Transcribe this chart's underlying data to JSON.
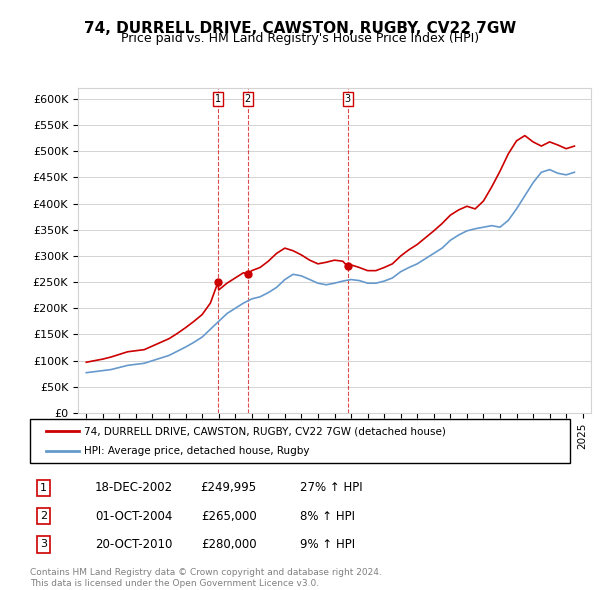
{
  "title": "74, DURRELL DRIVE, CAWSTON, RUGBY, CV22 7GW",
  "subtitle": "Price paid vs. HM Land Registry's House Price Index (HPI)",
  "ylabel_ticks": [
    "£0",
    "£50K",
    "£100K",
    "£150K",
    "£200K",
    "£250K",
    "£300K",
    "£350K",
    "£400K",
    "£450K",
    "£500K",
    "£550K",
    "£600K"
  ],
  "ytick_values": [
    0,
    50000,
    100000,
    150000,
    200000,
    250000,
    300000,
    350000,
    400000,
    450000,
    500000,
    550000,
    600000
  ],
  "xlim_start": 1994.5,
  "xlim_end": 2025.5,
  "ylim": [
    0,
    620000
  ],
  "transactions": [
    {
      "label": "1",
      "date": "18-DEC-2002",
      "price": 249995,
      "year": 2002.96,
      "hpi_pct": "27%",
      "dir": "↑"
    },
    {
      "label": "2",
      "date": "01-OCT-2004",
      "price": 265000,
      "year": 2004.75,
      "hpi_pct": "8%",
      "dir": "↑"
    },
    {
      "label": "3",
      "date": "20-OCT-2010",
      "price": 280000,
      "year": 2010.8,
      "hpi_pct": "9%",
      "dir": "↑"
    }
  ],
  "legend_line1": "74, DURRELL DRIVE, CAWSTON, RUGBY, CV22 7GW (detached house)",
  "legend_line2": "HPI: Average price, detached house, Rugby",
  "footer1": "Contains HM Land Registry data © Crown copyright and database right 2024.",
  "footer2": "This data is licensed under the Open Government Licence v3.0.",
  "red_color": "#cc0000",
  "blue_color": "#6699cc",
  "hpi_x": [
    1995,
    1995.5,
    1996,
    1996.5,
    1997,
    1997.5,
    1998,
    1998.5,
    1999,
    1999.5,
    2000,
    2000.5,
    2001,
    2001.5,
    2002,
    2002.5,
    2003,
    2003.5,
    2004,
    2004.5,
    2005,
    2005.5,
    2006,
    2006.5,
    2007,
    2007.5,
    2008,
    2008.5,
    2009,
    2009.5,
    2010,
    2010.5,
    2011,
    2011.5,
    2012,
    2012.5,
    2013,
    2013.5,
    2014,
    2014.5,
    2015,
    2015.5,
    2016,
    2016.5,
    2017,
    2017.5,
    2018,
    2018.5,
    2019,
    2019.5,
    2020,
    2020.5,
    2021,
    2021.5,
    2022,
    2022.5,
    2023,
    2023.5,
    2024,
    2024.5
  ],
  "hpi_y": [
    77000,
    79000,
    81000,
    83000,
    87000,
    91000,
    93000,
    95000,
    100000,
    105000,
    110000,
    118000,
    126000,
    135000,
    145000,
    160000,
    175000,
    190000,
    200000,
    210000,
    218000,
    222000,
    230000,
    240000,
    255000,
    265000,
    262000,
    255000,
    248000,
    245000,
    248000,
    252000,
    255000,
    253000,
    248000,
    248000,
    252000,
    258000,
    270000,
    278000,
    285000,
    295000,
    305000,
    315000,
    330000,
    340000,
    348000,
    352000,
    355000,
    358000,
    355000,
    368000,
    390000,
    415000,
    440000,
    460000,
    465000,
    458000,
    455000,
    460000
  ],
  "red_x": [
    1995,
    1995.5,
    1996,
    1996.5,
    1997,
    1997.5,
    1998,
    1998.5,
    1999,
    1999.5,
    2000,
    2000.5,
    2001,
    2001.5,
    2002,
    2002.5,
    2002.96,
    2003,
    2003.5,
    2004,
    2004.5,
    2004.75,
    2005,
    2005.5,
    2006,
    2006.5,
    2007,
    2007.5,
    2008,
    2008.5,
    2009,
    2009.5,
    2010,
    2010.5,
    2010.8,
    2011,
    2011.5,
    2012,
    2012.5,
    2013,
    2013.5,
    2014,
    2014.5,
    2015,
    2015.5,
    2016,
    2016.5,
    2017,
    2017.5,
    2018,
    2018.5,
    2019,
    2019.5,
    2020,
    2020.5,
    2021,
    2021.5,
    2022,
    2022.5,
    2023,
    2023.5,
    2024,
    2024.5
  ],
  "red_y": [
    97000,
    100000,
    103000,
    107000,
    112000,
    117000,
    119000,
    121000,
    128000,
    135000,
    142000,
    152000,
    163000,
    175000,
    188000,
    210000,
    249995,
    235000,
    248000,
    258000,
    268000,
    265000,
    272000,
    278000,
    290000,
    305000,
    315000,
    310000,
    302000,
    292000,
    285000,
    288000,
    292000,
    290000,
    280000,
    283000,
    278000,
    272000,
    272000,
    278000,
    285000,
    300000,
    312000,
    322000,
    335000,
    348000,
    362000,
    378000,
    388000,
    395000,
    390000,
    405000,
    432000,
    462000,
    495000,
    520000,
    530000,
    518000,
    510000,
    518000,
    512000,
    505000,
    510000
  ]
}
